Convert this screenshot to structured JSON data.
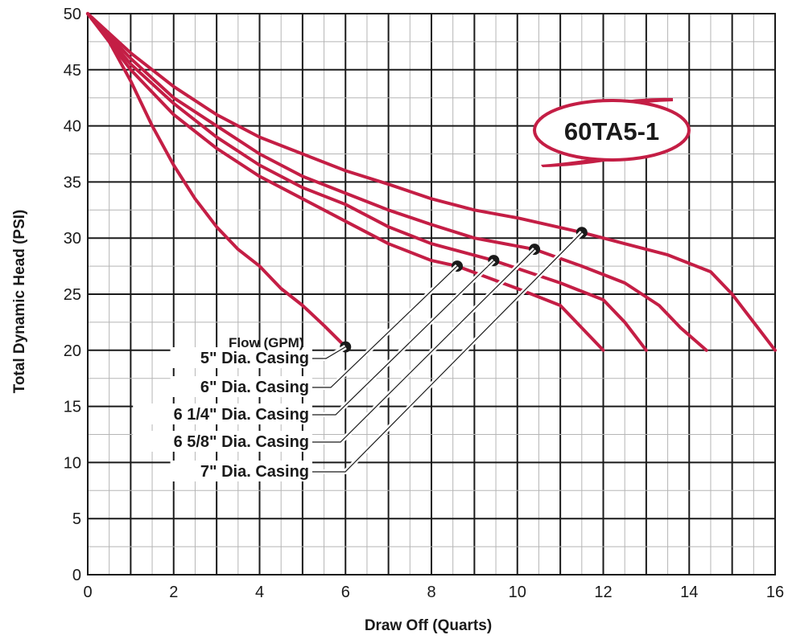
{
  "chart_data": {
    "type": "line",
    "title": "",
    "xlabel": "Draw Off (Quarts)",
    "ylabel": "Total Dynamic Head (PSI)",
    "xlim": [
      0,
      16
    ],
    "ylim": [
      0,
      50
    ],
    "x_ticks": [
      0,
      2,
      4,
      6,
      8,
      10,
      12,
      14,
      16
    ],
    "y_ticks": [
      0,
      5,
      10,
      15,
      20,
      25,
      30,
      35,
      40,
      45,
      50
    ],
    "grid": true,
    "model_badge": "60TA5-1",
    "flow_label": "Flow (GPM)",
    "line_color": "#c41e45",
    "series": [
      {
        "name": "5\" Dia. Casing",
        "points": [
          [
            0,
            50
          ],
          [
            0.5,
            47.5
          ],
          [
            1,
            44
          ],
          [
            1.5,
            40
          ],
          [
            2,
            36.5
          ],
          [
            2.5,
            33.5
          ],
          [
            3,
            31
          ],
          [
            3.5,
            29
          ],
          [
            4,
            27.5
          ],
          [
            4.5,
            25.5
          ],
          [
            5,
            24
          ],
          [
            5.5,
            22.2
          ],
          [
            6,
            20.3
          ]
        ],
        "marker": [
          6,
          20.3
        ]
      },
      {
        "name": "6\" Dia. Casing",
        "points": [
          [
            0,
            50
          ],
          [
            1,
            45
          ],
          [
            2,
            41
          ],
          [
            3,
            38
          ],
          [
            4,
            35.5
          ],
          [
            5,
            33.5
          ],
          [
            6,
            31.5
          ],
          [
            7,
            29.5
          ],
          [
            8,
            28
          ],
          [
            8.6,
            27.5
          ],
          [
            10,
            25.5
          ],
          [
            11,
            24
          ],
          [
            11.5,
            22
          ],
          [
            12,
            20
          ]
        ],
        "marker": [
          8.6,
          27.5
        ]
      },
      {
        "name": "6 1/4\" Dia. Casing",
        "points": [
          [
            0,
            50
          ],
          [
            1,
            45.5
          ],
          [
            2,
            42
          ],
          [
            3,
            39
          ],
          [
            4,
            36.5
          ],
          [
            5,
            34.5
          ],
          [
            6,
            33
          ],
          [
            7,
            31
          ],
          [
            8,
            29.5
          ],
          [
            9.45,
            28
          ],
          [
            11,
            26
          ],
          [
            12,
            24.5
          ],
          [
            12.5,
            22.5
          ],
          [
            13,
            20
          ]
        ],
        "marker": [
          9.45,
          28
        ]
      },
      {
        "name": "6 5/8\" Dia. Casing",
        "points": [
          [
            0,
            50
          ],
          [
            1,
            46
          ],
          [
            2,
            42.5
          ],
          [
            3,
            40
          ],
          [
            4,
            37.5
          ],
          [
            5,
            35.5
          ],
          [
            6,
            34
          ],
          [
            7,
            32.5
          ],
          [
            8,
            31.2
          ],
          [
            9,
            30
          ],
          [
            10.4,
            29
          ],
          [
            11.5,
            27.5
          ],
          [
            12.5,
            26
          ],
          [
            13.3,
            24
          ],
          [
            13.8,
            22
          ],
          [
            14.4,
            20
          ]
        ],
        "marker": [
          10.4,
          29
        ]
      },
      {
        "name": "7\" Dia. Casing",
        "points": [
          [
            0,
            50
          ],
          [
            1,
            46.5
          ],
          [
            2,
            43.5
          ],
          [
            3,
            41
          ],
          [
            4,
            39
          ],
          [
            5,
            37.5
          ],
          [
            6,
            36
          ],
          [
            7,
            34.8
          ],
          [
            8,
            33.5
          ],
          [
            9,
            32.5
          ],
          [
            10,
            31.8
          ],
          [
            11.5,
            30.5
          ],
          [
            12.5,
            29.5
          ],
          [
            13.5,
            28.5
          ],
          [
            14.5,
            27
          ],
          [
            15,
            25
          ],
          [
            15.5,
            22.5
          ],
          [
            16,
            20
          ]
        ],
        "marker": [
          11.5,
          30.5
        ]
      }
    ]
  }
}
